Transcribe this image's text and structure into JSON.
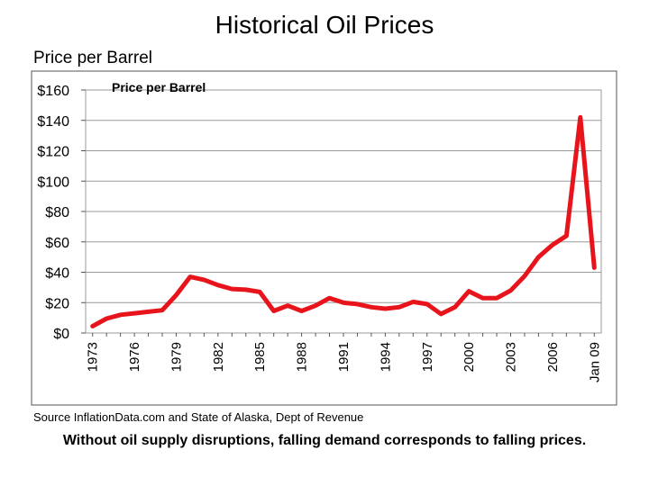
{
  "slide": {
    "title": "Historical Oil Prices",
    "y_unit_label": "Price per Barrel",
    "source": "Source  InflationData.com and State of Alaska, Dept of Revenue",
    "caption": "Without oil supply disruptions, falling demand corresponds to falling prices."
  },
  "chart_data": {
    "type": "line",
    "series_label": "Price per Barrel",
    "x": [
      1973,
      1974,
      1975,
      1976,
      1977,
      1978,
      1979,
      1980,
      1981,
      1982,
      1983,
      1984,
      1985,
      1986,
      1987,
      1988,
      1989,
      1990,
      1991,
      1992,
      1993,
      1994,
      1995,
      1996,
      1997,
      1998,
      1999,
      2000,
      2001,
      2002,
      2003,
      2004,
      2005,
      2006,
      2007,
      2008,
      2009
    ],
    "series": [
      {
        "values": [
          4.5,
          9.5,
          12,
          13,
          14,
          15,
          25,
          37,
          35,
          31.5,
          29,
          28.5,
          27,
          14.5,
          18,
          14.5,
          18,
          23,
          20,
          19,
          17,
          16,
          17,
          20.5,
          19,
          12.5,
          17,
          27.5,
          23,
          23,
          28,
          37.5,
          50,
          58,
          64,
          142,
          43
        ]
      }
    ],
    "x_tick_labels": [
      "1973",
      "1976",
      "1979",
      "1982",
      "1985",
      "1988",
      "1991",
      "1994",
      "1997",
      "2000",
      "2003",
      "2006",
      "Jan 09"
    ],
    "x_tick_values": [
      1973,
      1976,
      1979,
      1982,
      1985,
      1988,
      1991,
      1994,
      1997,
      2000,
      2003,
      2006,
      2009
    ],
    "y_tick_labels": [
      "$0",
      "$20",
      "$40",
      "$60",
      "$80",
      "$100",
      "$120",
      "$140",
      "$160"
    ],
    "y_tick_values": [
      0,
      20,
      40,
      60,
      80,
      100,
      120,
      140,
      160
    ],
    "ylim": [
      0,
      160
    ],
    "xlim": [
      1972.5,
      2009.5
    ],
    "grid": "horizontal",
    "line_color": "#e8141c",
    "grid_color": "#9a9a9a"
  }
}
